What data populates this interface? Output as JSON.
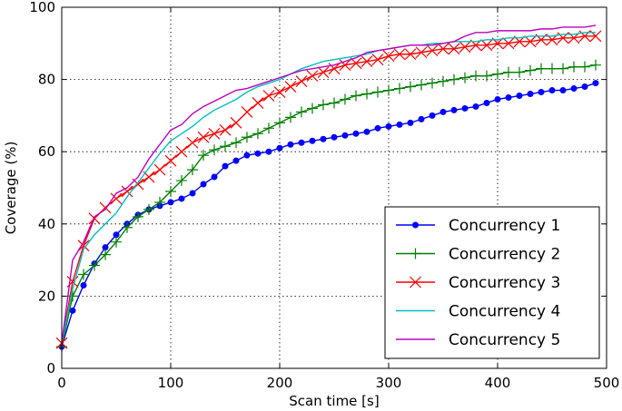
{
  "chart_data": {
    "type": "line",
    "xlabel": "Scan time [s]",
    "ylabel": "Coverage (%)",
    "xlim": [
      0,
      500
    ],
    "ylim": [
      0,
      100
    ],
    "xticks": [
      "0",
      "100",
      "200",
      "300",
      "400",
      "500"
    ],
    "yticks": [
      "0",
      "20",
      "40",
      "60",
      "80",
      "100"
    ],
    "grid": true,
    "legend_position": "bottom-right",
    "x": [
      0,
      10,
      20,
      30,
      40,
      50,
      60,
      70,
      80,
      90,
      100,
      110,
      120,
      130,
      140,
      150,
      160,
      170,
      180,
      190,
      200,
      210,
      220,
      230,
      240,
      250,
      260,
      270,
      280,
      290,
      300,
      310,
      320,
      330,
      340,
      350,
      360,
      370,
      380,
      390,
      400,
      410,
      420,
      430,
      440,
      450,
      460,
      470,
      480,
      490
    ],
    "series": [
      {
        "name": "Concurrency 1",
        "color": "#0000ff",
        "marker": "circle",
        "values": [
          6,
          16,
          23,
          29,
          33.5,
          37,
          40,
          42.5,
          44,
          45,
          46,
          47,
          48.5,
          51,
          53,
          56,
          57.5,
          59,
          59.5,
          60,
          61,
          62,
          62.5,
          63,
          63.5,
          64,
          64.5,
          65,
          65.5,
          66.5,
          67,
          67.5,
          68,
          69,
          70,
          71,
          71.5,
          72,
          72.5,
          73.5,
          74.5,
          75,
          75.5,
          76,
          76.5,
          77,
          77,
          77.5,
          78,
          79
        ]
      },
      {
        "name": "Concurrency 2",
        "color": "#008000",
        "marker": "plus",
        "values": [
          6,
          20,
          26,
          28.5,
          31.5,
          35,
          39,
          42,
          44,
          46,
          49,
          52,
          55,
          59,
          60.5,
          61.5,
          62.5,
          64,
          65,
          66.5,
          68,
          69.5,
          71,
          72,
          73,
          73.5,
          74.5,
          75.5,
          76,
          76.5,
          77,
          77.5,
          78,
          78.5,
          79,
          79.5,
          80,
          80.5,
          81,
          81,
          81.5,
          82,
          82,
          82.5,
          83,
          83,
          83,
          83.5,
          83.5,
          84
        ]
      },
      {
        "name": "Concurrency 3",
        "color": "#ff0000",
        "marker": "x",
        "values": [
          7,
          24,
          34,
          41.5,
          44.5,
          47,
          49,
          51,
          53,
          55,
          57.5,
          60,
          62.5,
          64,
          65,
          66,
          68,
          71,
          73.5,
          75.5,
          76.5,
          78,
          79.5,
          81,
          82,
          83,
          84,
          84.5,
          85,
          85.5,
          86.5,
          87,
          87,
          87.5,
          88,
          88.5,
          88.5,
          89,
          89.5,
          89.5,
          90,
          90,
          90.5,
          90.5,
          91,
          91,
          91.5,
          91.5,
          92,
          92
        ]
      },
      {
        "name": "Concurrency 4",
        "color": "#00bfbf",
        "marker": "none",
        "values": [
          7,
          22,
          33,
          37,
          40,
          43,
          47.5,
          51.5,
          55.5,
          59.5,
          63,
          65,
          67,
          69.5,
          71.5,
          73,
          74.5,
          76.5,
          78,
          79,
          80,
          81.5,
          83,
          84,
          85,
          85.5,
          86,
          86.5,
          87,
          88,
          88.5,
          89,
          89.5,
          89.5,
          90,
          90,
          90.5,
          90.5,
          90.5,
          91,
          91,
          91.5,
          91.5,
          92,
          92,
          92,
          92.5,
          92.5,
          93,
          93
        ]
      },
      {
        "name": "Concurrency 5",
        "color": "#bf00bf",
        "marker": "none",
        "values": [
          7,
          30,
          35,
          42,
          44,
          48.5,
          50,
          53,
          58,
          62,
          66,
          67.5,
          70.5,
          72.5,
          74,
          75.5,
          77,
          77.5,
          78.5,
          79.5,
          80.5,
          81.5,
          82.5,
          83,
          83.5,
          84,
          85,
          86,
          87.5,
          88,
          88.5,
          89,
          89.5,
          89.5,
          89.5,
          90,
          90.5,
          92,
          93,
          93,
          93.5,
          93.5,
          93.5,
          93.5,
          94,
          94,
          94.5,
          94.5,
          94.5,
          95
        ]
      }
    ]
  }
}
